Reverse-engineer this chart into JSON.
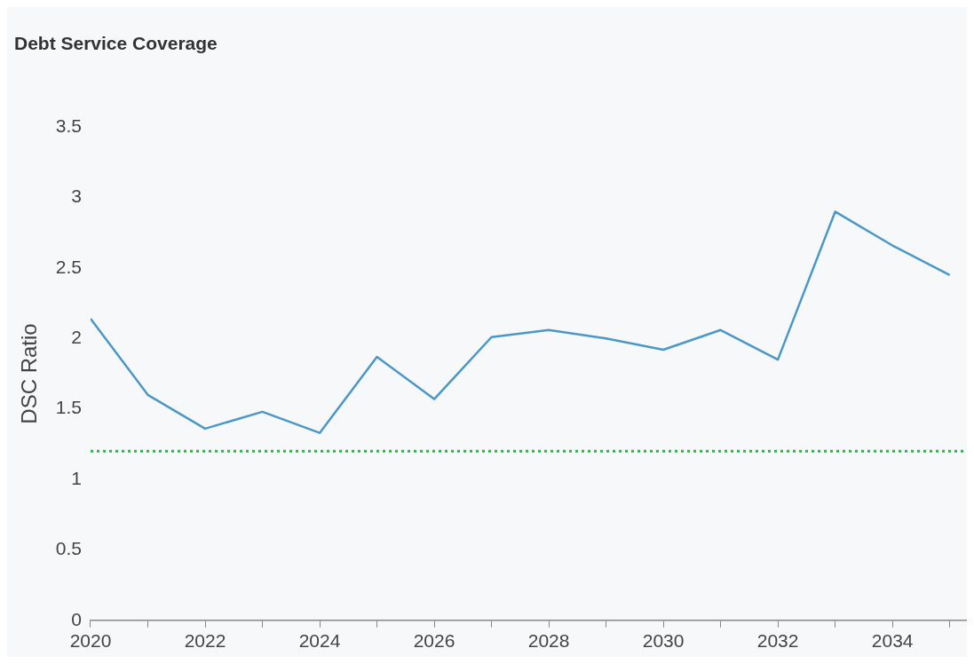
{
  "chart_data": {
    "type": "line",
    "title": "Debt Service Coverage",
    "ylabel": "DSC Ratio",
    "x": [
      2020,
      2021,
      2022,
      2023,
      2024,
      2025,
      2026,
      2027,
      2028,
      2029,
      2030,
      2031,
      2032,
      2033,
      2034,
      2035
    ],
    "series": [
      {
        "color": "#4a98c9",
        "values": [
          2.14,
          1.6,
          1.36,
          1.48,
          1.33,
          1.87,
          1.57,
          2.01,
          2.06,
          2.0,
          1.92,
          2.06,
          1.85,
          2.9,
          2.66,
          2.45
        ]
      }
    ],
    "xlim": [
      2020,
      2035.3
    ],
    "xticks": [
      2020,
      {
        "value": 2021,
        "label": null
      },
      2022,
      {
        "value": 2023,
        "label": null
      },
      2024,
      {
        "value": 2025,
        "label": null
      },
      2026,
      {
        "value": 2027,
        "label": null
      },
      2028,
      {
        "value": 2029,
        "label": null
      },
      2030,
      {
        "value": 2031,
        "label": null
      },
      2032,
      {
        "value": 2033,
        "label": null
      },
      2034,
      {
        "value": 2035,
        "label": null
      }
    ],
    "ylim": [
      0,
      3.5
    ],
    "yticks": [
      0,
      0.5,
      1,
      1.5,
      2,
      2.5,
      3,
      3.5
    ],
    "ref_lines": [
      {
        "axis": "y",
        "value": 1.2,
        "color": "#22bb44",
        "line_style": "dotted"
      }
    ],
    "grid": false,
    "legend": false,
    "marker": "none",
    "line_style": "solid"
  }
}
